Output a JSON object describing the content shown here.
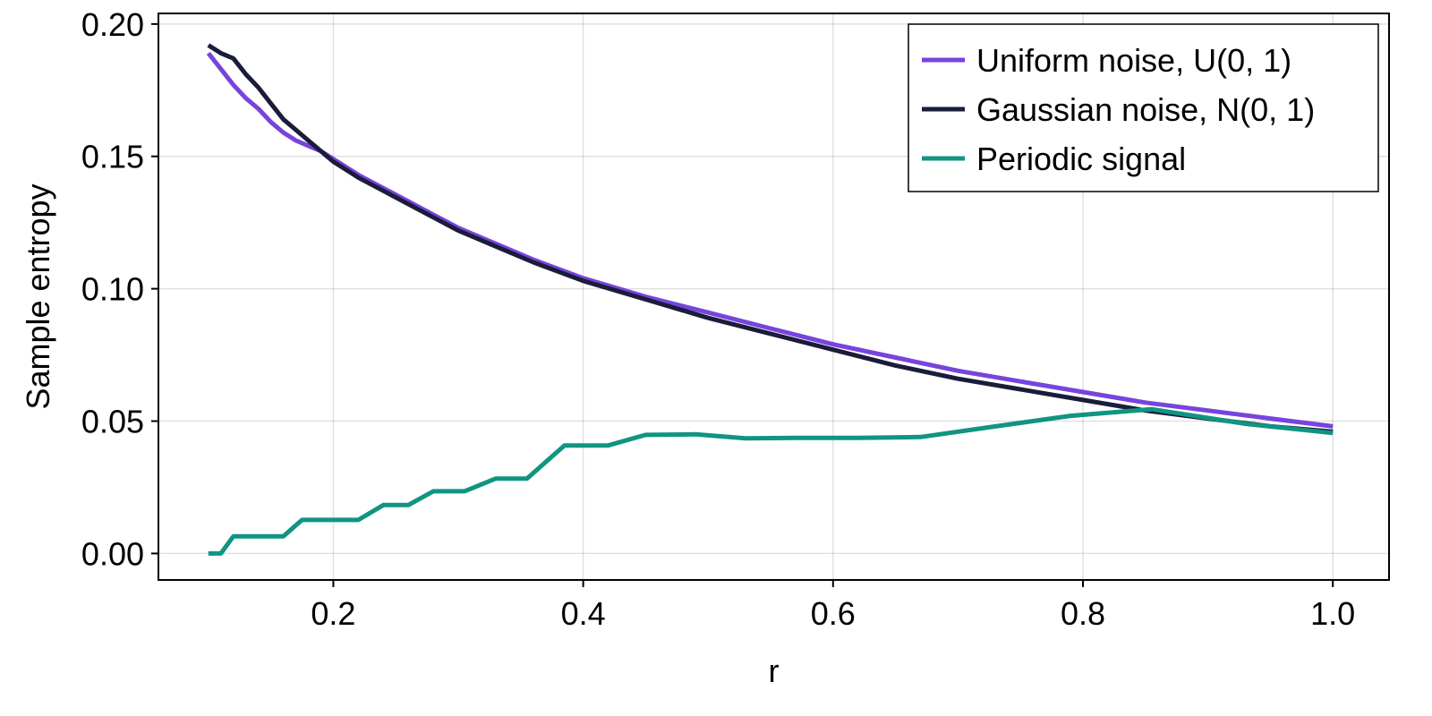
{
  "chart_data": {
    "type": "line",
    "title": "",
    "xlabel": "r",
    "ylabel": "Sample entropy",
    "xlim": [
      0.06,
      1.045
    ],
    "ylim": [
      -0.01,
      0.204
    ],
    "xticks": [
      0.2,
      0.4,
      0.6,
      0.8,
      1.0
    ],
    "xtick_labels": [
      "0.2",
      "0.4",
      "0.6",
      "0.8",
      "1.0"
    ],
    "yticks": [
      0.0,
      0.05,
      0.1,
      0.15,
      0.2
    ],
    "ytick_labels": [
      "0.00",
      "0.05",
      "0.10",
      "0.15",
      "0.20"
    ],
    "grid": true,
    "legend": {
      "position": "top-right"
    },
    "series": [
      {
        "name": "Uniform noise, U(0, 1)",
        "color": "#7744dd",
        "x": [
          0.1,
          0.11,
          0.12,
          0.13,
          0.14,
          0.15,
          0.16,
          0.17,
          0.18,
          0.19,
          0.2,
          0.22,
          0.24,
          0.26,
          0.28,
          0.3,
          0.33,
          0.36,
          0.4,
          0.45,
          0.5,
          0.55,
          0.6,
          0.65,
          0.7,
          0.75,
          0.8,
          0.85,
          0.9,
          0.95,
          1.0
        ],
        "y": [
          0.189,
          0.183,
          0.177,
          0.172,
          0.168,
          0.163,
          0.159,
          0.156,
          0.154,
          0.152,
          0.149,
          0.143,
          0.138,
          0.133,
          0.128,
          0.123,
          0.117,
          0.111,
          0.104,
          0.097,
          0.091,
          0.085,
          0.079,
          0.074,
          0.069,
          0.065,
          0.061,
          0.057,
          0.054,
          0.051,
          0.048
        ]
      },
      {
        "name": "Gaussian noise, N(0, 1)",
        "color": "#1a1c3a",
        "x": [
          0.1,
          0.11,
          0.12,
          0.13,
          0.14,
          0.15,
          0.16,
          0.17,
          0.18,
          0.19,
          0.2,
          0.22,
          0.24,
          0.26,
          0.28,
          0.3,
          0.33,
          0.36,
          0.4,
          0.45,
          0.5,
          0.55,
          0.6,
          0.65,
          0.7,
          0.75,
          0.8,
          0.85,
          0.9,
          0.95,
          1.0
        ],
        "y": [
          0.192,
          0.189,
          0.187,
          0.181,
          0.176,
          0.17,
          0.164,
          0.16,
          0.156,
          0.152,
          0.148,
          0.142,
          0.137,
          0.132,
          0.127,
          0.122,
          0.116,
          0.11,
          0.103,
          0.096,
          0.089,
          0.083,
          0.077,
          0.071,
          0.066,
          0.062,
          0.058,
          0.054,
          0.051,
          0.048,
          0.046
        ]
      },
      {
        "name": "Periodic signal",
        "color": "#0f9582",
        "x": [
          0.1,
          0.11,
          0.12,
          0.16,
          0.175,
          0.22,
          0.24,
          0.26,
          0.28,
          0.305,
          0.33,
          0.355,
          0.385,
          0.42,
          0.45,
          0.49,
          0.53,
          0.57,
          0.62,
          0.67,
          0.73,
          0.79,
          0.855,
          0.93,
          1.0
        ],
        "y": [
          0.0,
          0.0,
          0.0065,
          0.0065,
          0.0127,
          0.0127,
          0.0183,
          0.0183,
          0.0235,
          0.0235,
          0.0283,
          0.0283,
          0.0408,
          0.0408,
          0.0448,
          0.045,
          0.0435,
          0.0437,
          0.0437,
          0.044,
          0.048,
          0.052,
          0.0545,
          0.049,
          0.0455
        ]
      }
    ]
  }
}
